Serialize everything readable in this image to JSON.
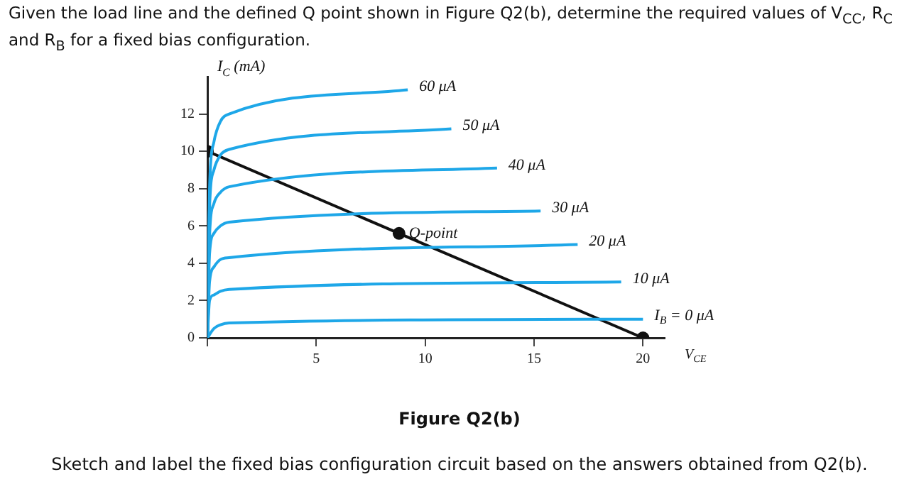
{
  "chart_data": {
    "type": "line",
    "title": "Given the load line and the defined Q point shown in Figure Q2(b), determine the required values of V$_{CC}$, R$_{C}$ and R$_{B}$ for a fixed bias configuration.",
    "xlabel": "V$_{CE}$",
    "ylabel": "I$_{C}$ (mA)",
    "xlim": [
      0,
      21
    ],
    "ylim": [
      0,
      14
    ],
    "xticks": [
      {
        "value": 0,
        "label": null
      },
      5,
      10,
      15,
      20
    ],
    "yticks": [
      0,
      2,
      4,
      6,
      8,
      10,
      12
    ],
    "grid": false,
    "legend": false,
    "line_style": "solid",
    "series": [
      {
        "name": "I$_{B}$ = 0 μA",
        "color": "#1ea7e8",
        "marker": "none",
        "x": [
          0,
          0.3,
          0.6,
          1,
          20
        ],
        "values": [
          0,
          0.5,
          0.7,
          0.8,
          1.0
        ]
      },
      {
        "name": "10 μA",
        "color": "#1ea7e8",
        "marker": "none",
        "x": [
          0,
          0.1,
          0.3,
          0.6,
          1,
          19
        ],
        "values": [
          0,
          2,
          2.3,
          2.5,
          2.6,
          3.0
        ]
      },
      {
        "name": "20 μA",
        "color": "#1ea7e8",
        "marker": "none",
        "x": [
          0,
          0.1,
          0.3,
          0.6,
          1,
          17
        ],
        "values": [
          0,
          3,
          3.8,
          4.2,
          4.3,
          5.0
        ]
      },
      {
        "name": "30 μA",
        "color": "#1ea7e8",
        "marker": "none",
        "x": [
          0,
          0.1,
          0.3,
          0.6,
          1,
          15.3
        ],
        "values": [
          0,
          4.5,
          5.6,
          6.0,
          6.2,
          6.8
        ]
      },
      {
        "name": "40 μA",
        "color": "#1ea7e8",
        "marker": "none",
        "x": [
          0,
          0.1,
          0.3,
          0.6,
          1,
          13.3
        ],
        "values": [
          0,
          5.5,
          7.2,
          7.8,
          8.1,
          9.1
        ]
      },
      {
        "name": "50 μA",
        "color": "#1ea7e8",
        "marker": "none",
        "x": [
          0,
          0.1,
          0.3,
          0.6,
          1,
          11.2
        ],
        "values": [
          0,
          7,
          9.0,
          9.8,
          10.1,
          11.2
        ]
      },
      {
        "name": "60 μA",
        "color": "#1ea7e8",
        "marker": "none",
        "x": [
          0,
          0.1,
          0.3,
          0.6,
          1,
          9.2
        ],
        "values": [
          0,
          8,
          10.5,
          11.6,
          12.0,
          13.3
        ]
      },
      {
        "color": "#111111",
        "marker": "circle",
        "x": [
          0,
          20
        ],
        "values": [
          10,
          0
        ]
      },
      {
        "name": "Q-point",
        "type": "scatter",
        "color": "#111111",
        "marker": "circle",
        "x": [
          8.8
        ],
        "values": [
          5.6
        ]
      }
    ],
    "annotations": [
      "Figure Q2(b)",
      "Sketch and label the fixed bias configuration circuit based on the answers obtained from Q2(b)."
    ]
  }
}
